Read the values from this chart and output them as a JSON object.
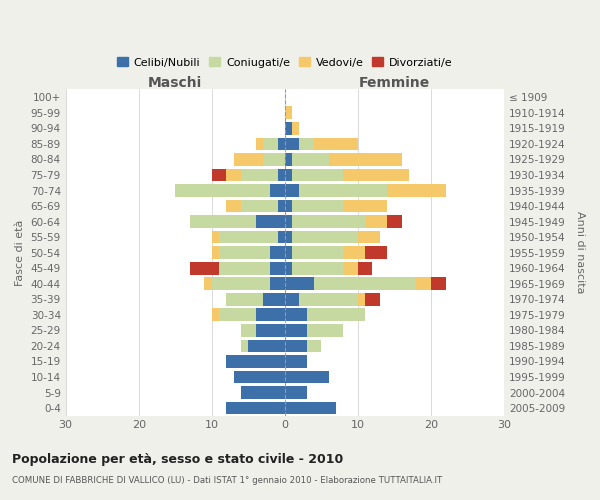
{
  "age_groups": [
    "0-4",
    "5-9",
    "10-14",
    "15-19",
    "20-24",
    "25-29",
    "30-34",
    "35-39",
    "40-44",
    "45-49",
    "50-54",
    "55-59",
    "60-64",
    "65-69",
    "70-74",
    "75-79",
    "80-84",
    "85-89",
    "90-94",
    "95-99",
    "100+"
  ],
  "birth_years": [
    "2005-2009",
    "2000-2004",
    "1995-1999",
    "1990-1994",
    "1985-1989",
    "1980-1984",
    "1975-1979",
    "1970-1974",
    "1965-1969",
    "1960-1964",
    "1955-1959",
    "1950-1954",
    "1945-1949",
    "1940-1944",
    "1935-1939",
    "1930-1934",
    "1925-1929",
    "1920-1924",
    "1915-1919",
    "1910-1914",
    "≤ 1909"
  ],
  "maschi": {
    "celibi": [
      8,
      6,
      7,
      8,
      5,
      4,
      4,
      3,
      2,
      2,
      2,
      1,
      4,
      1,
      2,
      1,
      0,
      1,
      0,
      0,
      0
    ],
    "coniugati": [
      0,
      0,
      0,
      0,
      1,
      2,
      5,
      5,
      8,
      7,
      7,
      8,
      9,
      5,
      13,
      5,
      3,
      2,
      0,
      0,
      0
    ],
    "vedovi": [
      0,
      0,
      0,
      0,
      0,
      0,
      1,
      0,
      1,
      0,
      1,
      1,
      0,
      2,
      0,
      2,
      4,
      1,
      0,
      0,
      0
    ],
    "divorziati": [
      0,
      0,
      0,
      0,
      0,
      0,
      0,
      0,
      0,
      4,
      0,
      0,
      0,
      0,
      0,
      2,
      0,
      0,
      0,
      0,
      0
    ]
  },
  "femmine": {
    "nubili": [
      7,
      3,
      6,
      3,
      3,
      3,
      3,
      2,
      4,
      1,
      1,
      1,
      1,
      1,
      2,
      1,
      1,
      2,
      1,
      0,
      0
    ],
    "coniugate": [
      0,
      0,
      0,
      0,
      2,
      5,
      8,
      8,
      14,
      7,
      7,
      9,
      10,
      7,
      12,
      7,
      5,
      2,
      0,
      0,
      0
    ],
    "vedove": [
      0,
      0,
      0,
      0,
      0,
      0,
      0,
      1,
      2,
      2,
      3,
      3,
      3,
      6,
      8,
      9,
      10,
      6,
      1,
      1,
      0
    ],
    "divorziate": [
      0,
      0,
      0,
      0,
      0,
      0,
      0,
      2,
      2,
      2,
      3,
      0,
      2,
      0,
      0,
      0,
      0,
      0,
      0,
      0,
      0
    ]
  },
  "colors": {
    "celibi": "#3d6fa8",
    "coniugati": "#c5d9a0",
    "vedovi": "#f5c96a",
    "divorziati": "#c0392b"
  },
  "xlim": 30,
  "title": "Popolazione per età, sesso e stato civile - 2010",
  "subtitle": "COMUNE DI FABBRICHE DI VALLICO (LU) - Dati ISTAT 1° gennaio 2010 - Elaborazione TUTTAITALIA.IT",
  "ylabel_left": "Fasce di età",
  "ylabel_right": "Anni di nascita",
  "xlabel_left": "Maschi",
  "xlabel_right": "Femmine",
  "bg_color": "#f0f0eb",
  "plot_bg": "#ffffff"
}
